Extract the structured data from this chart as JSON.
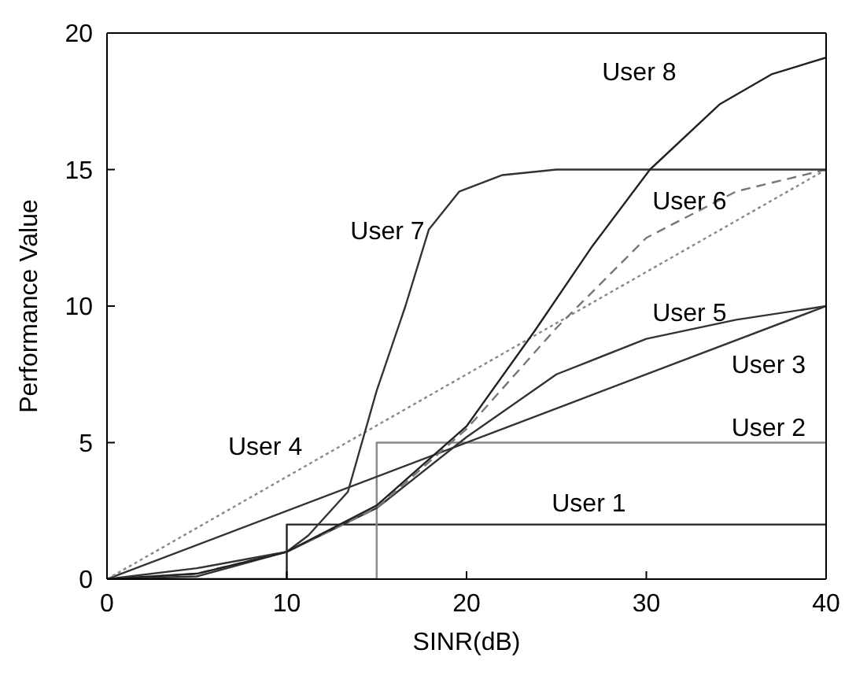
{
  "chart_data": {
    "type": "line",
    "xlabel": "SINR(dB)",
    "ylabel": "Performance Value",
    "xlim": [
      0,
      40
    ],
    "ylim": [
      0,
      20
    ],
    "xticks": [
      0,
      10,
      20,
      30,
      40
    ],
    "yticks": [
      0,
      5,
      10,
      15,
      20
    ],
    "legend": false,
    "marker": "none",
    "series": [
      {
        "name": "User 1",
        "color": "#222222",
        "line_style": "solid",
        "x": [
          0,
          10,
          10,
          40
        ],
        "values": [
          0,
          0,
          2,
          2
        ]
      },
      {
        "name": "User 2",
        "color": "#888888",
        "line_style": "solid",
        "x": [
          0,
          15,
          15,
          40
        ],
        "values": [
          0,
          0,
          5,
          5
        ]
      },
      {
        "name": "User 3",
        "color": "#333333",
        "line_style": "solid",
        "x": [
          0,
          40
        ],
        "values": [
          0,
          10
        ]
      },
      {
        "name": "User 4",
        "color": "#888888",
        "line_style": "dotted",
        "x": [
          0,
          40
        ],
        "values": [
          0,
          15
        ]
      },
      {
        "name": "User 5",
        "color": "#333333",
        "line_style": "solid",
        "x": [
          0,
          5,
          10,
          15,
          20,
          25,
          30,
          35,
          40
        ],
        "values": [
          0,
          0.4,
          1,
          2.6,
          5.2,
          7.5,
          8.8,
          9.5,
          10
        ]
      },
      {
        "name": "User 6",
        "color": "#777777",
        "line_style": "dashed",
        "x": [
          0,
          5,
          10,
          15,
          20,
          25,
          30,
          35,
          40
        ],
        "values": [
          0,
          0.2,
          1,
          2.6,
          5.5,
          9.2,
          12.5,
          14.2,
          15
        ]
      },
      {
        "name": "User 7",
        "color": "#333333",
        "line_style": "solid",
        "x": [
          0,
          5,
          10,
          11.2,
          13.4,
          15,
          16.6,
          17.9,
          19.6,
          22,
          25,
          30,
          40
        ],
        "values": [
          0,
          0.1,
          1,
          1.6,
          3.2,
          6.9,
          10,
          12.8,
          14.2,
          14.8,
          15,
          15,
          15
        ]
      },
      {
        "name": "User 8",
        "color": "#222222",
        "line_style": "solid",
        "x": [
          0,
          5,
          10,
          15,
          20,
          23.8,
          27,
          30.2,
          34.1,
          37,
          40
        ],
        "values": [
          0,
          0.2,
          1,
          2.7,
          5.6,
          9.1,
          12.2,
          15,
          17.4,
          18.5,
          19.1
        ]
      }
    ]
  }
}
